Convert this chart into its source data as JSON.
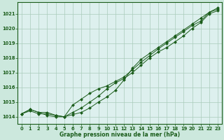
{
  "background_color": "#cce8dd",
  "plot_bg_color": "#ddf0ee",
  "grid_color": "#aaccbb",
  "line_color": "#1a5c1a",
  "marker_color": "#1a5c1a",
  "xlabel": "Graphe pression niveau de la mer (hPa)",
  "xlim": [
    -0.5,
    23.5
  ],
  "ylim": [
    1013.5,
    1021.8
  ],
  "yticks": [
    1014,
    1015,
    1016,
    1017,
    1018,
    1019,
    1020,
    1021
  ],
  "xtick_labels": [
    "0",
    "1",
    "2",
    "3",
    "4",
    "5",
    "6",
    "7",
    "8",
    "9",
    "10",
    "11",
    "12",
    "13",
    "14",
    "15",
    "16",
    "17",
    "18",
    "19",
    "20",
    "21",
    "22",
    "23"
  ],
  "series": [
    [
      1014.2,
      1014.5,
      1014.3,
      1014.3,
      1014.1,
      1014.0,
      1014.3,
      1014.6,
      1015.0,
      1015.4,
      1015.9,
      1016.3,
      1016.6,
      1017.0,
      1017.5,
      1018.0,
      1018.4,
      1018.7,
      1019.1,
      1019.5,
      1020.0,
      1020.4,
      1021.0,
      1021.2
    ],
    [
      1014.2,
      1014.5,
      1014.3,
      1014.1,
      1014.0,
      1014.0,
      1014.8,
      1015.2,
      1015.6,
      1015.9,
      1016.1,
      1016.4,
      1016.7,
      1017.2,
      1017.7,
      1018.15,
      1018.6,
      1019.0,
      1019.4,
      1019.8,
      1020.2,
      1020.5,
      1021.1,
      1021.3
    ],
    [
      1014.2,
      1014.4,
      1014.2,
      1014.2,
      1014.1,
      1014.0,
      1014.15,
      1014.3,
      1014.6,
      1015.0,
      1015.35,
      1015.8,
      1016.5,
      1017.3,
      1017.9,
      1018.3,
      1018.7,
      1019.1,
      1019.5,
      1019.9,
      1020.3,
      1020.7,
      1021.1,
      1021.4
    ]
  ]
}
